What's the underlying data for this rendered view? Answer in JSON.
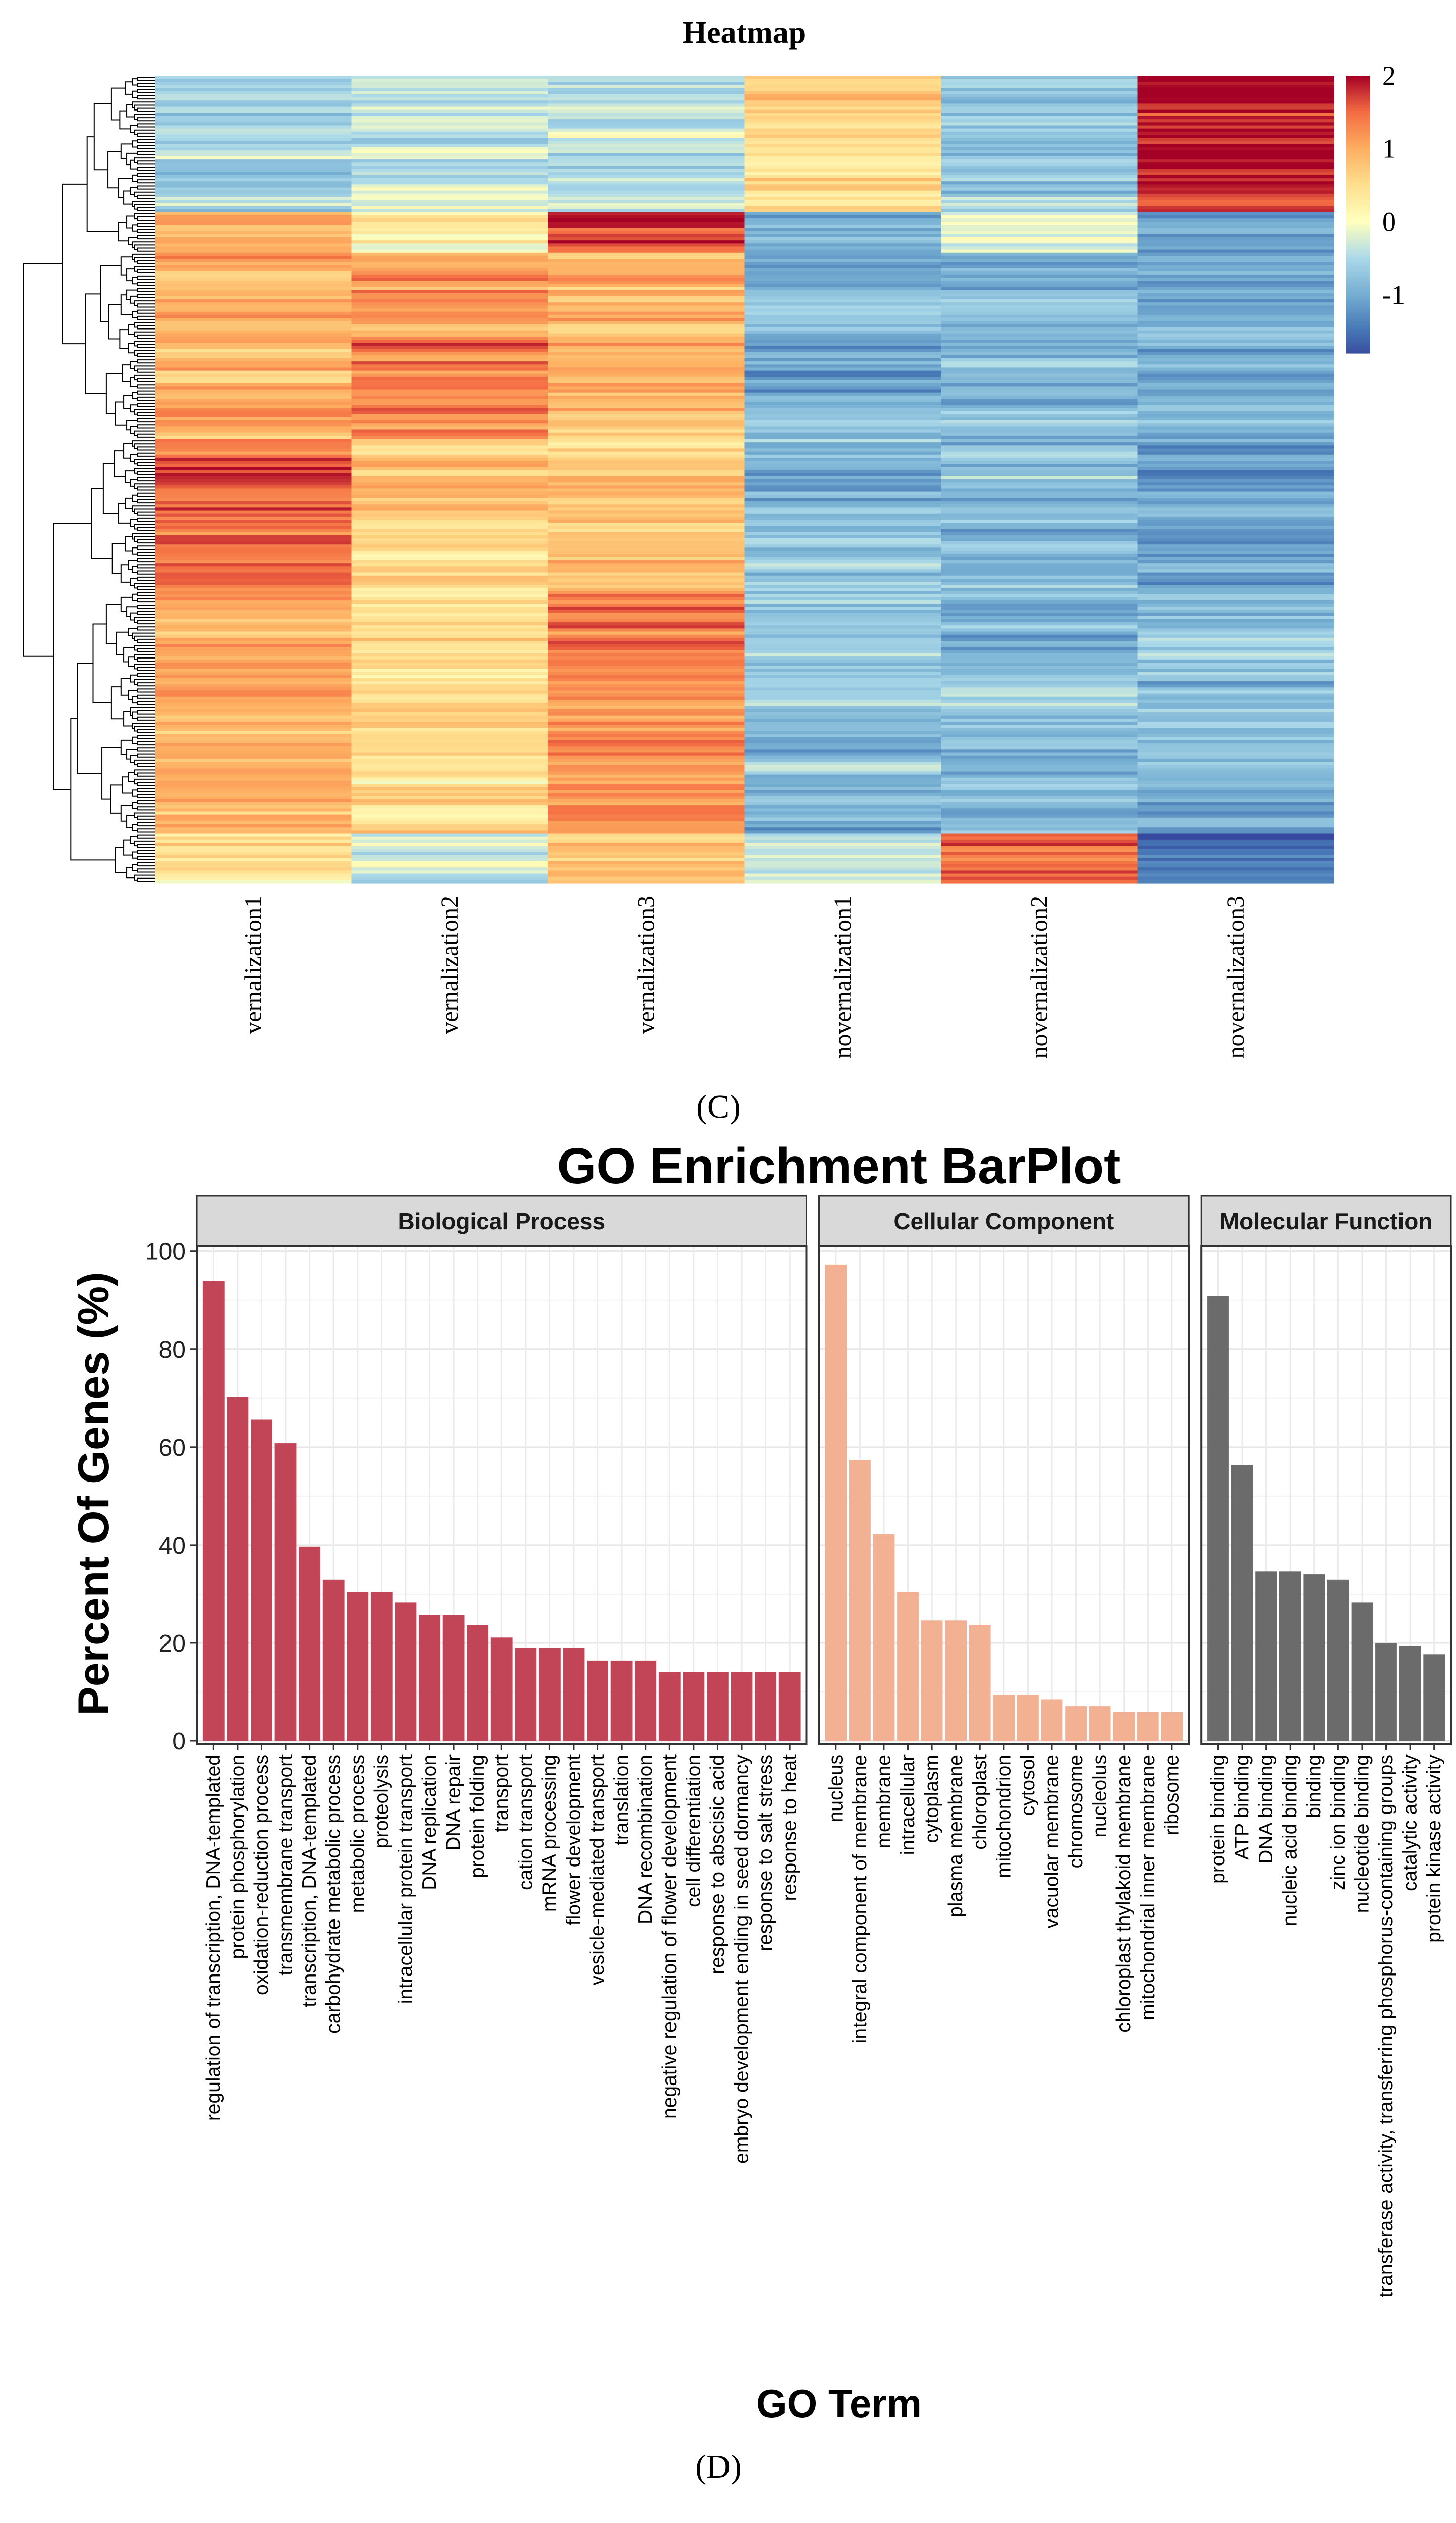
{
  "caption_c": "(C)",
  "caption_d": "(D)",
  "chart_data": [
    {
      "type": "heatmap",
      "title": "Heatmap",
      "columns": [
        "vernalization1",
        "vernalization2",
        "vernalization3",
        "novernalization1",
        "novernalization2",
        "novernalization3"
      ],
      "colorbar": {
        "min": -1.8,
        "max": 2,
        "ticks": [
          2,
          1,
          0,
          -1
        ],
        "tick_labels": [
          "2",
          "1",
          "0",
          "-1"
        ],
        "palette": [
          "#313695",
          "#4575b4",
          "#74add1",
          "#abd9e9",
          "#ffffbf",
          "#fee090",
          "#fdae61",
          "#f46d43",
          "#a50026"
        ]
      },
      "dendrogram": "rows",
      "row_blocks": [
        {
          "share": 0.17,
          "means": [
            -0.6,
            -0.3,
            -0.5,
            0.5,
            -0.7,
            1.9
          ]
        },
        {
          "share": 0.05,
          "means": [
            0.8,
            0.2,
            1.5,
            -1.0,
            -0.2,
            -1.1
          ]
        },
        {
          "share": 0.23,
          "means": [
            1.0,
            1.3,
            0.8,
            -0.9,
            -0.9,
            -0.9
          ]
        },
        {
          "share": 0.19,
          "means": [
            1.5,
            0.7,
            0.7,
            -0.8,
            -0.8,
            -1.1
          ]
        },
        {
          "share": 0.3,
          "means": [
            1.0,
            0.4,
            1.3,
            -0.8,
            -0.9,
            -0.9
          ]
        },
        {
          "share": 0.06,
          "means": [
            0.4,
            -0.4,
            0.9,
            -0.1,
            1.5,
            -1.6
          ]
        }
      ]
    },
    {
      "type": "bar",
      "title": "GO Enrichment BarPlot",
      "xlabel": "GO Term",
      "ylabel": "Percent Of Genes (%)",
      "ylim": [
        0,
        101
      ],
      "yticks": [
        0,
        20,
        40,
        60,
        80,
        100
      ],
      "ytick_labels": [
        "0",
        "20",
        "40",
        "60",
        "80",
        "100"
      ],
      "grid": true,
      "facets": [
        {
          "name": "Biological Process",
          "color": "#c24457",
          "categories": [
            "regulation of transcription, DNA-templated",
            "protein phosphorylation",
            "oxidation-reduction process",
            "transmembrane transport",
            "transcription, DNA-templated",
            "carbohydrate metabolic process",
            "metabolic process",
            "proteolysis",
            "intracellular protein transport",
            "DNA replication",
            "DNA repair",
            "protein folding",
            "transport",
            "cation transport",
            "mRNA processing",
            "flower development",
            "vesicle-mediated transport",
            "translation",
            "DNA recombination",
            "negative regulation of flower development",
            "cell differentiation",
            "response to abscisic acid",
            "embryo development ending in seed dormancy",
            "response to salt stress",
            "response to heat"
          ],
          "values": [
            93.9,
            70.2,
            65.6,
            60.8,
            39.7,
            32.9,
            30.4,
            30.4,
            28.3,
            25.7,
            25.7,
            23.6,
            21.1,
            19.0,
            19.0,
            19.0,
            16.4,
            16.4,
            16.4,
            14.1,
            14.1,
            14.1,
            14.1,
            14.1,
            14.1
          ]
        },
        {
          "name": "Cellular Component",
          "color": "#f3b193",
          "categories": [
            "nucleus",
            "integral component of membrane",
            "membrane",
            "intracellular",
            "cytoplasm",
            "plasma membrane",
            "chloroplast",
            "mitochondrion",
            "cytosol",
            "vacuolar membrane",
            "chromosome",
            "nucleolus",
            "chloroplast thylakoid membrane",
            "mitochondrial inner membrane",
            "ribosome"
          ],
          "values": [
            97.3,
            57.4,
            42.2,
            30.4,
            24.6,
            24.6,
            23.6,
            9.3,
            9.3,
            8.4,
            7.1,
            7.1,
            5.9,
            5.9,
            5.9
          ]
        },
        {
          "name": "Molecular Function",
          "color": "#6b6b6b",
          "categories": [
            "protein binding",
            "ATP binding",
            "DNA binding",
            "nucleic acid binding",
            "binding",
            "zinc ion binding",
            "nucleotide binding",
            "transferase activity, transferring phosphorus-containing groups",
            "catalytic activity",
            "protein kinase activity"
          ],
          "values": [
            90.9,
            56.3,
            34.6,
            34.6,
            34.0,
            32.9,
            28.3,
            19.9,
            19.4,
            17.7
          ]
        }
      ]
    }
  ]
}
